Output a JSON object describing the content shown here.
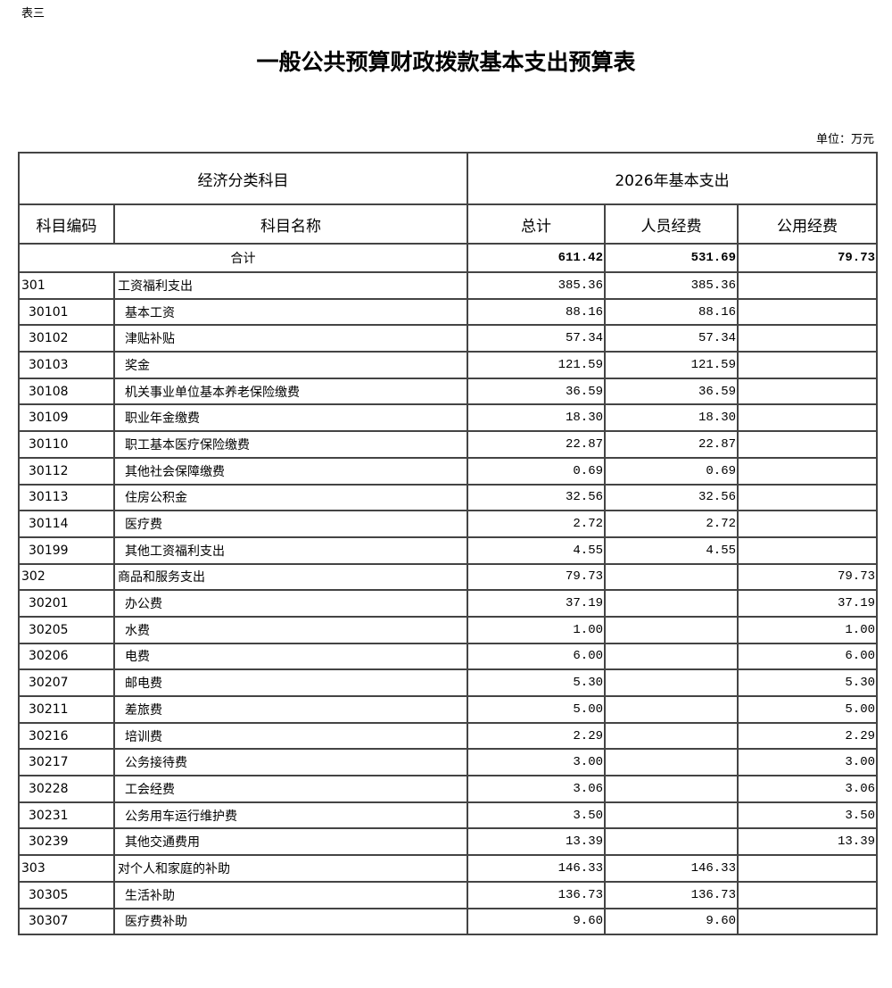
{
  "label": "表三",
  "title": "一般公共预算财政拨款基本支出预算表",
  "unit": "单位：万元",
  "header": {
    "category": "经济分类科目",
    "year_group": "2026年基本支出",
    "code": "科目编码",
    "name": "科目名称",
    "total": "总计",
    "personnel": "人员经费",
    "public": "公用经费"
  },
  "total_row": {
    "label": "合计",
    "total": "611.42",
    "personnel": "531.69",
    "public": "79.73"
  },
  "rows": [
    {
      "code": "301",
      "name": "工资福利支出",
      "total": "385.36",
      "personnel": "385.36",
      "public": "",
      "level": 1
    },
    {
      "code": "30101",
      "name": "基本工资",
      "total": "88.16",
      "personnel": "88.16",
      "public": "",
      "level": 2
    },
    {
      "code": "30102",
      "name": "津贴补贴",
      "total": "57.34",
      "personnel": "57.34",
      "public": "",
      "level": 2
    },
    {
      "code": "30103",
      "name": "奖金",
      "total": "121.59",
      "personnel": "121.59",
      "public": "",
      "level": 2
    },
    {
      "code": "30108",
      "name": "机关事业单位基本养老保险缴费",
      "total": "36.59",
      "personnel": "36.59",
      "public": "",
      "level": 2
    },
    {
      "code": "30109",
      "name": "职业年金缴费",
      "total": "18.30",
      "personnel": "18.30",
      "public": "",
      "level": 2
    },
    {
      "code": "30110",
      "name": "职工基本医疗保险缴费",
      "total": "22.87",
      "personnel": "22.87",
      "public": "",
      "level": 2
    },
    {
      "code": "30112",
      "name": "其他社会保障缴费",
      "total": "0.69",
      "personnel": "0.69",
      "public": "",
      "level": 2
    },
    {
      "code": "30113",
      "name": "住房公积金",
      "total": "32.56",
      "personnel": "32.56",
      "public": "",
      "level": 2
    },
    {
      "code": "30114",
      "name": "医疗费",
      "total": "2.72",
      "personnel": "2.72",
      "public": "",
      "level": 2
    },
    {
      "code": "30199",
      "name": "其他工资福利支出",
      "total": "4.55",
      "personnel": "4.55",
      "public": "",
      "level": 2
    },
    {
      "code": "302",
      "name": "商品和服务支出",
      "total": "79.73",
      "personnel": "",
      "public": "79.73",
      "level": 1
    },
    {
      "code": "30201",
      "name": "办公费",
      "total": "37.19",
      "personnel": "",
      "public": "37.19",
      "level": 2
    },
    {
      "code": "30205",
      "name": "水费",
      "total": "1.00",
      "personnel": "",
      "public": "1.00",
      "level": 2
    },
    {
      "code": "30206",
      "name": "电费",
      "total": "6.00",
      "personnel": "",
      "public": "6.00",
      "level": 2
    },
    {
      "code": "30207",
      "name": "邮电费",
      "total": "5.30",
      "personnel": "",
      "public": "5.30",
      "level": 2
    },
    {
      "code": "30211",
      "name": "差旅费",
      "total": "5.00",
      "personnel": "",
      "public": "5.00",
      "level": 2
    },
    {
      "code": "30216",
      "name": "培训费",
      "total": "2.29",
      "personnel": "",
      "public": "2.29",
      "level": 2
    },
    {
      "code": "30217",
      "name": "公务接待费",
      "total": "3.00",
      "personnel": "",
      "public": "3.00",
      "level": 2
    },
    {
      "code": "30228",
      "name": "工会经费",
      "total": "3.06",
      "personnel": "",
      "public": "3.06",
      "level": 2
    },
    {
      "code": "30231",
      "name": "公务用车运行维护费",
      "total": "3.50",
      "personnel": "",
      "public": "3.50",
      "level": 2
    },
    {
      "code": "30239",
      "name": "其他交通费用",
      "total": "13.39",
      "personnel": "",
      "public": "13.39",
      "level": 2
    },
    {
      "code": "303",
      "name": "对个人和家庭的补助",
      "total": "146.33",
      "personnel": "146.33",
      "public": "",
      "level": 1
    },
    {
      "code": "30305",
      "name": "生活补助",
      "total": "136.73",
      "personnel": "136.73",
      "public": "",
      "level": 2
    },
    {
      "code": "30307",
      "name": "医疗费补助",
      "total": "9.60",
      "personnel": "9.60",
      "public": "",
      "level": 2
    }
  ]
}
